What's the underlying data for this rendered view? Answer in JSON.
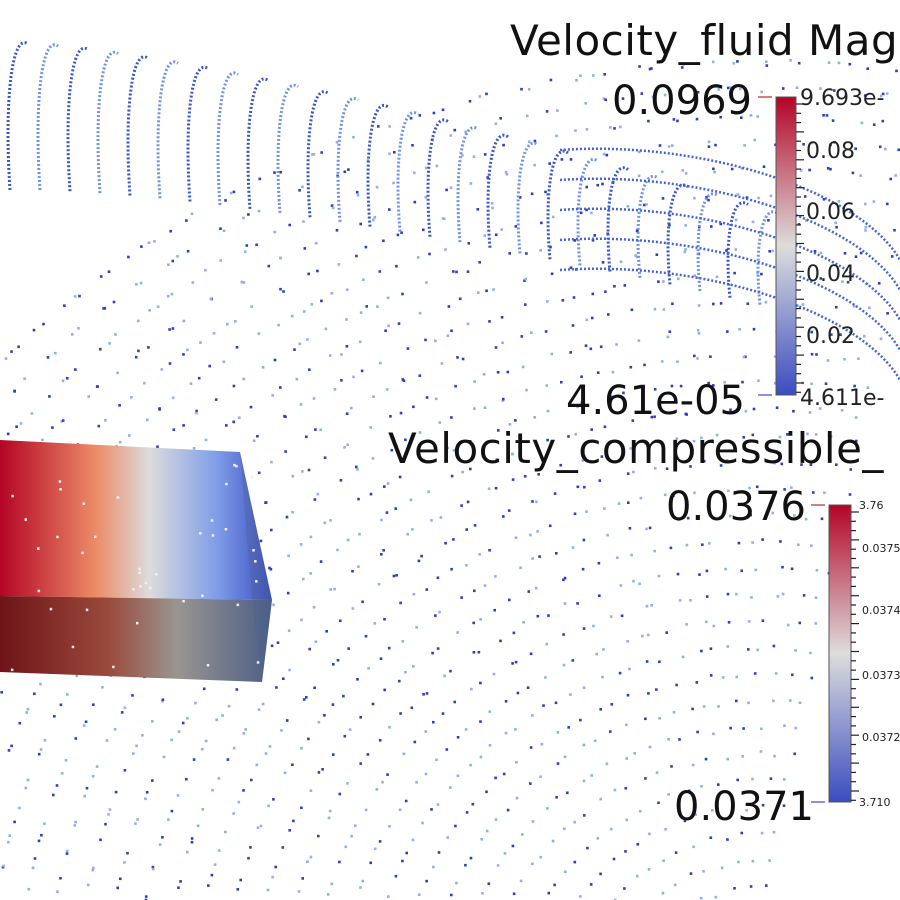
{
  "colors": {
    "background": "#ffffff",
    "cool": "#3b4cc0",
    "mid": "#dddddd",
    "warm": "#b40426",
    "points_dark": "#2a3fc2",
    "points_light": "#8fb0f0"
  },
  "legend_fluid": {
    "title": "Velocity_fluid Mag",
    "max_label": "0.0969",
    "min_label": "4.61e-05",
    "max_tick": "9.693e-",
    "min_tick": "4.611e-",
    "ticks": [
      "0.08",
      "0.06",
      "0.04",
      "0.02"
    ]
  },
  "legend_compressible": {
    "title": "Velocity_compressible_",
    "max_label": "0.0376",
    "min_label": "0.0371",
    "max_tick": "3.76",
    "min_tick": "3.710",
    "ticks": [
      "0.0375",
      "0.0374",
      "0.0373",
      "0.0372"
    ]
  }
}
